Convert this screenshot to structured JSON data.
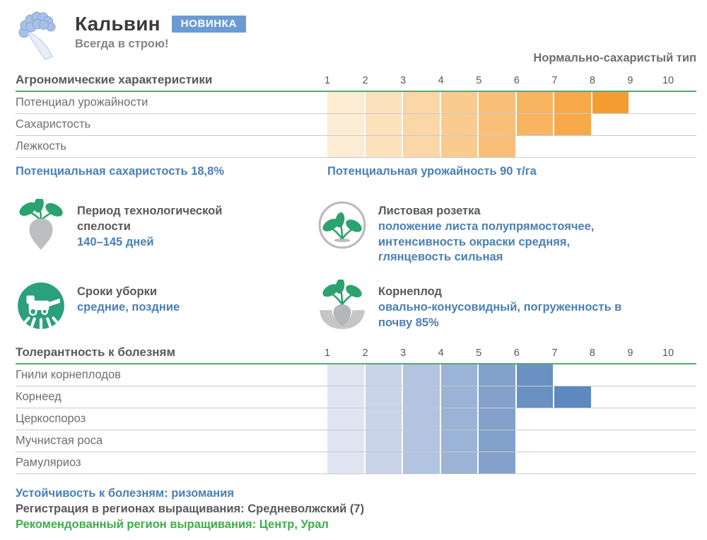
{
  "header": {
    "title": "Кальвин",
    "badge": "НОВИНКА",
    "tagline": "Всегда в строю!",
    "type_label": "Нормально-сахаристый тип",
    "logo_icon": "beet-sketch-logo-icon"
  },
  "colors": {
    "accent_green_line": "#57a873",
    "badge_bg": "#6b9bd2",
    "blue_text": "#4a80b6",
    "green_text": "#3fae49",
    "dark_text": "#58595b",
    "orange_scale": [
      "#fcecd3",
      "#fce1bd",
      "#fbd6a6",
      "#facb8f",
      "#f9bf78",
      "#f8b461",
      "#f7a94a",
      "#f59d33"
    ],
    "blue_scale": [
      "#dfe5f0",
      "#c9d4e9",
      "#b2c4e0",
      "#9ab3d6",
      "#82a2cc",
      "#6b91c3",
      "#5e88c0"
    ]
  },
  "chart_data": [
    {
      "type": "bar",
      "title": "Агрономические характеристики",
      "x_ticks": [
        1,
        2,
        3,
        4,
        5,
        6,
        7,
        8,
        9,
        10
      ],
      "xlim": [
        1,
        10
      ],
      "categories": [
        "Потенциал урожайности",
        "Сахаристость",
        "Лежкость"
      ],
      "values": [
        9,
        8,
        6
      ],
      "palette": "orange_scale",
      "legend_position": "none",
      "grid": true
    },
    {
      "type": "bar",
      "title": "Толерантность к болезням",
      "x_ticks": [
        1,
        2,
        3,
        4,
        5,
        6,
        7,
        8,
        9,
        10
      ],
      "xlim": [
        1,
        10
      ],
      "categories": [
        "Гнили корнеплодов",
        "Корнеед",
        "Церкоспороз",
        "Мучнистая роса",
        "Рамуляриоз"
      ],
      "values": [
        7,
        8,
        6,
        6,
        6
      ],
      "palette": "blue_scale",
      "legend_position": "none",
      "grid": true
    }
  ],
  "highlights": {
    "sugar": "Потенциальная сахаристость 18,8%",
    "yield": "Потенциальная урожайность 90 т/га"
  },
  "features": [
    {
      "icon": "beet-icon",
      "title": "Период технологической спелости",
      "detail": "140–145 дней"
    },
    {
      "icon": "leaf-rosette-icon",
      "title": "Листовая розетка",
      "detail": "положение листа полупрямостоячее, интенсивность окраски средняя, глянцевость сильная"
    },
    {
      "icon": "harvester-icon",
      "title": "Сроки уборки",
      "detail": "средние, поздние"
    },
    {
      "icon": "root-icon",
      "title": "Корнеплод",
      "detail": "овально-конусовидный, погруженность в почву 85%"
    }
  ],
  "footer": [
    {
      "text": "Устойчивость к болезням: ризомания",
      "color": "blue"
    },
    {
      "text": "Регистрация в регионах выращивания: Средневолжский (7)",
      "color": "dark"
    },
    {
      "text": "Рекомендованный регион выращивания: Центр, Урал",
      "color": "green"
    }
  ]
}
